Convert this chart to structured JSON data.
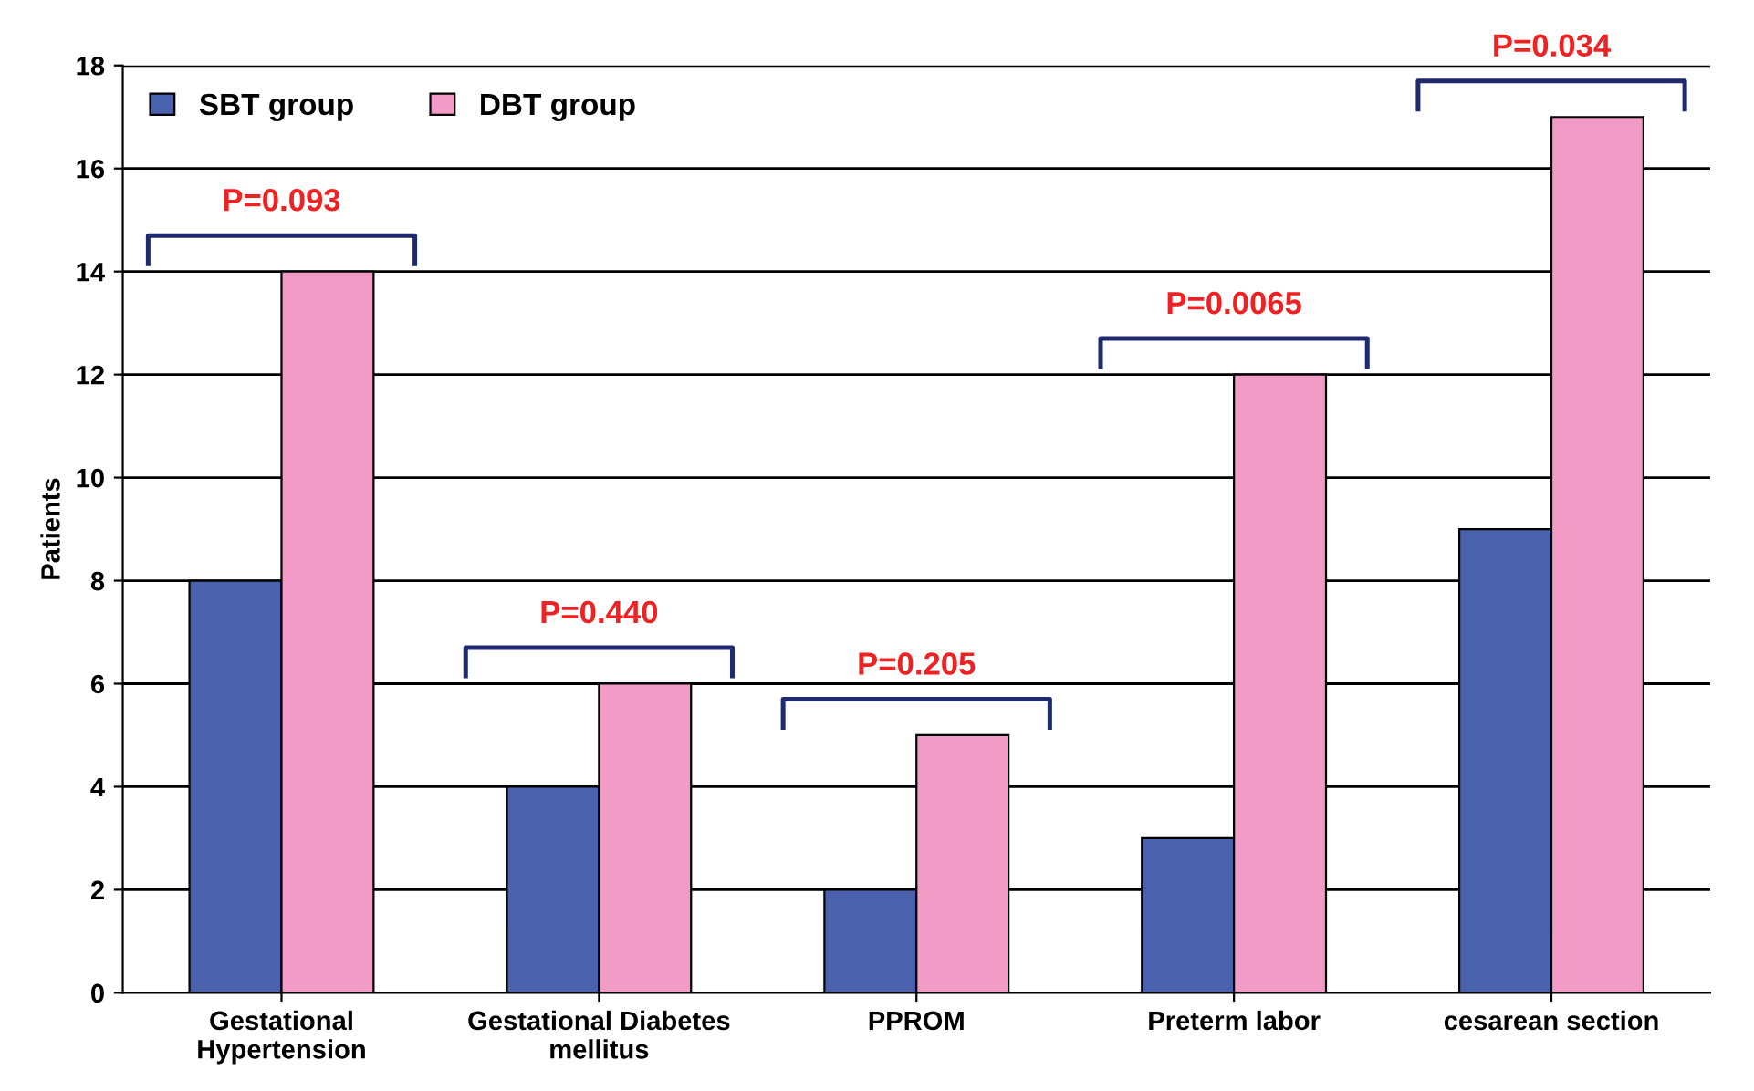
{
  "chart_data": {
    "type": "bar",
    "ylabel": "Patients",
    "categories": [
      "Gestational\nHypertension",
      "Gestational Diabetes\nmellitus",
      "PPROM",
      "Preterm labor",
      "cesarean section"
    ],
    "series": [
      {
        "name": "SBT group",
        "color": "#4a62ae",
        "values": [
          8,
          4,
          2,
          3,
          9
        ]
      },
      {
        "name": "DBT group",
        "color": "#f29bc6",
        "values": [
          14,
          6,
          5,
          12,
          17
        ]
      }
    ],
    "ylim": [
      0,
      18
    ],
    "yticks": [
      0,
      2,
      4,
      6,
      8,
      10,
      12,
      14,
      16,
      18
    ],
    "grid": "y",
    "legend": "top left",
    "annotations": [
      "P=0.093",
      "P=0.440",
      "P=0.205",
      "P=0.0065",
      "P=0.034"
    ]
  }
}
